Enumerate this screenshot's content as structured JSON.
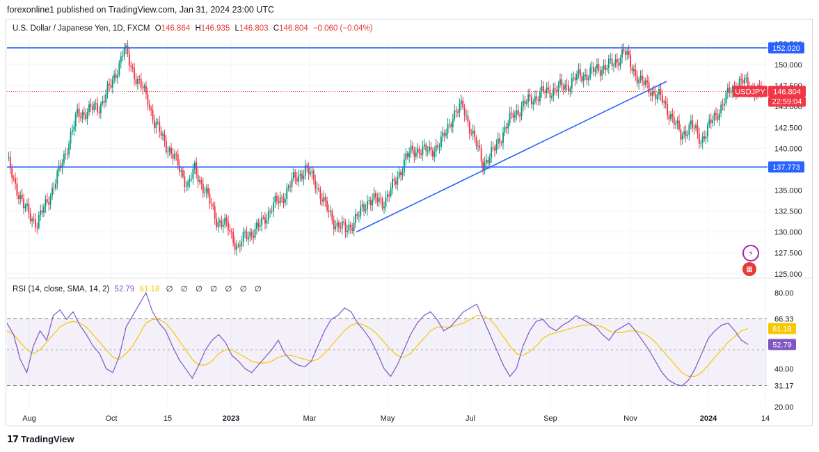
{
  "header": {
    "published": "forexonline1 published on TradingView.com, Jan 31, 2024 23:00 UTC"
  },
  "legend": {
    "symbol": "U.S. Dollar / Japanese Yen, 1D, FXCM",
    "open_label": "O",
    "open": "146.864",
    "high_label": "H",
    "high": "146.935",
    "low_label": "L",
    "low": "146.803",
    "close_label": "C",
    "close": "146.804",
    "change": "−0.060 (−0.04%)"
  },
  "price_axis": {
    "labels": [
      "152.500",
      "150.000",
      "147.500",
      "145.000",
      "142.500",
      "140.000",
      "137.500",
      "135.000",
      "132.500",
      "130.000",
      "127.500",
      "125.000"
    ],
    "values": [
      152.5,
      150.0,
      147.5,
      145.0,
      142.5,
      140.0,
      137.5,
      135.0,
      132.5,
      130.0,
      127.5,
      125.0
    ]
  },
  "price_badges": {
    "resistance": "152.020",
    "support": "137.773",
    "symbol_tag": "USDJPY",
    "last_price": "146.804",
    "countdown": "22:59:04"
  },
  "rsi": {
    "legend_label": "RSI (14, close, SMA, 14, 2)",
    "rsi_value": "52.79",
    "sma_value": "61.18",
    "na_marks": "∅ ∅ ∅ ∅ ∅ ∅ ∅",
    "axis_labels": [
      "80.00",
      "66.33",
      "40.00",
      "31.17",
      "20.00"
    ],
    "axis_values": [
      80,
      66.33,
      40,
      31.17,
      20
    ]
  },
  "time_axis": {
    "labels": [
      "Aug",
      "Oct",
      "15",
      "2023",
      "Mar",
      "May",
      "Jul",
      "Sep",
      "Nov",
      "2024",
      "14"
    ]
  },
  "footer": {
    "brand": "TradingView"
  },
  "colors": {
    "up": "#089981",
    "down": "#f23645",
    "line": "#2962ff",
    "rsi": "#7e57c2",
    "sma": "#f5c800",
    "rsi_band": "#7e57c2"
  },
  "chart_data": [
    {
      "type": "line",
      "title": "U.S. Dollar / Japanese Yen, 1D, FXCM",
      "x": [
        "Aug",
        "Oct",
        "15",
        "2023",
        "Mar",
        "May",
        "Jul",
        "Sep",
        "Nov",
        "2024"
      ],
      "series": [
        {
          "name": "USDJPY close (approx.)",
          "values": [
            133.0,
            145.0,
            148.0,
            131.0,
            136.0,
            137.0,
            144.5,
            146.0,
            150.5,
            141.5
          ]
        }
      ],
      "ylim": [
        125.0,
        153.0
      ],
      "annotations": [
        {
          "kind": "horizontal",
          "value": 152.02
        },
        {
          "kind": "horizontal",
          "value": 137.773
        },
        {
          "kind": "trendline",
          "from": 130.0,
          "to": 148.0
        }
      ],
      "candle_anchors": [
        [
          0,
          138.5
        ],
        [
          10,
          133.0
        ],
        [
          18,
          131.0
        ],
        [
          30,
          136.5
        ],
        [
          42,
          144.0
        ],
        [
          55,
          145.0
        ],
        [
          62,
          147.5
        ],
        [
          70,
          151.8
        ],
        [
          78,
          148.0
        ],
        [
          84,
          146.0
        ],
        [
          88,
          143.0
        ],
        [
          95,
          140.5
        ],
        [
          102,
          138.0
        ],
        [
          108,
          135.5
        ],
        [
          112,
          137.5
        ],
        [
          118,
          135.0
        ],
        [
          125,
          131.5
        ],
        [
          132,
          130.5
        ],
        [
          138,
          128.0
        ],
        [
          142,
          129.5
        ],
        [
          150,
          130.5
        ],
        [
          158,
          133.0
        ],
        [
          164,
          134.0
        ],
        [
          170,
          136.0
        ],
        [
          178,
          137.5
        ],
        [
          184,
          136.0
        ],
        [
          190,
          133.0
        ],
        [
          196,
          131.0
        ],
        [
          202,
          130.2
        ],
        [
          210,
          132.0
        ],
        [
          216,
          134.0
        ],
        [
          224,
          133.5
        ],
        [
          232,
          136.0
        ],
        [
          238,
          139.0
        ],
        [
          246,
          140.0
        ],
        [
          252,
          139.5
        ],
        [
          260,
          141.0
        ],
        [
          266,
          144.0
        ],
        [
          272,
          145.0
        ],
        [
          278,
          141.5
        ],
        [
          284,
          138.2
        ],
        [
          290,
          139.5
        ],
        [
          296,
          142.0
        ],
        [
          302,
          144.0
        ],
        [
          310,
          145.5
        ],
        [
          318,
          146.5
        ],
        [
          326,
          147.0
        ],
        [
          334,
          147.5
        ],
        [
          340,
          148.5
        ],
        [
          348,
          149.0
        ],
        [
          356,
          149.8
        ],
        [
          362,
          150.0
        ],
        [
          368,
          151.7
        ],
        [
          372,
          150.0
        ],
        [
          378,
          148.0
        ],
        [
          384,
          147.0
        ],
        [
          390,
          146.0
        ],
        [
          396,
          144.0
        ],
        [
          402,
          141.5
        ],
        [
          408,
          142.8
        ],
        [
          414,
          141.0
        ],
        [
          420,
          143.0
        ],
        [
          426,
          145.0
        ],
        [
          432,
          147.0
        ],
        [
          438,
          148.0
        ],
        [
          444,
          147.3
        ],
        [
          448,
          146.8
        ]
      ]
    },
    {
      "type": "line",
      "title": "RSI (14, close, SMA, 14, 2)",
      "series": [
        {
          "name": "RSI",
          "values": [
            64,
            58,
            45,
            38,
            52,
            60,
            55,
            68,
            71,
            66,
            70,
            63,
            58,
            52,
            48,
            40,
            38,
            47,
            62,
            68,
            74,
            80,
            70,
            64,
            60,
            52,
            45,
            40,
            35,
            42,
            50,
            55,
            58,
            54,
            47,
            44,
            40,
            38,
            42,
            46,
            50,
            55,
            48,
            44,
            42,
            41,
            44,
            52,
            60,
            66,
            68,
            72,
            70,
            64,
            60,
            55,
            48,
            40,
            36,
            42,
            50,
            58,
            64,
            68,
            70,
            66,
            60,
            62,
            66,
            70,
            72,
            74,
            66,
            58,
            50,
            42,
            36,
            40,
            52,
            60,
            65,
            66,
            62,
            60,
            63,
            65,
            68,
            66,
            64,
            62,
            58,
            55,
            60,
            62,
            64,
            60,
            55,
            50,
            44,
            38,
            34,
            32,
            31,
            34,
            40,
            48,
            56,
            60,
            63,
            64,
            60,
            55,
            52.79
          ]
        },
        {
          "name": "SMA",
          "values": [
            60,
            58,
            54,
            50,
            48,
            50,
            54,
            58,
            62,
            64,
            65,
            64,
            62,
            58,
            54,
            50,
            46,
            45,
            48,
            52,
            58,
            64,
            66,
            66,
            64,
            60,
            55,
            50,
            45,
            42,
            42,
            44,
            48,
            50,
            50,
            48,
            46,
            44,
            43,
            43,
            44,
            46,
            47,
            47,
            46,
            45,
            44,
            45,
            48,
            52,
            56,
            60,
            63,
            64,
            63,
            61,
            58,
            54,
            50,
            47,
            46,
            48,
            52,
            56,
            60,
            62,
            62,
            62,
            63,
            64,
            66,
            68,
            68,
            66,
            62,
            57,
            52,
            48,
            47,
            49,
            52,
            56,
            58,
            59,
            60,
            61,
            62,
            63,
            63,
            63,
            62,
            60,
            59,
            59,
            60,
            60,
            59,
            57,
            54,
            50,
            46,
            42,
            38,
            36,
            36,
            38,
            42,
            46,
            50,
            54,
            57,
            60,
            61.18
          ]
        }
      ],
      "ylim": [
        20,
        80
      ],
      "bands": {
        "upper": 66.33,
        "lower": 31.17
      }
    }
  ]
}
